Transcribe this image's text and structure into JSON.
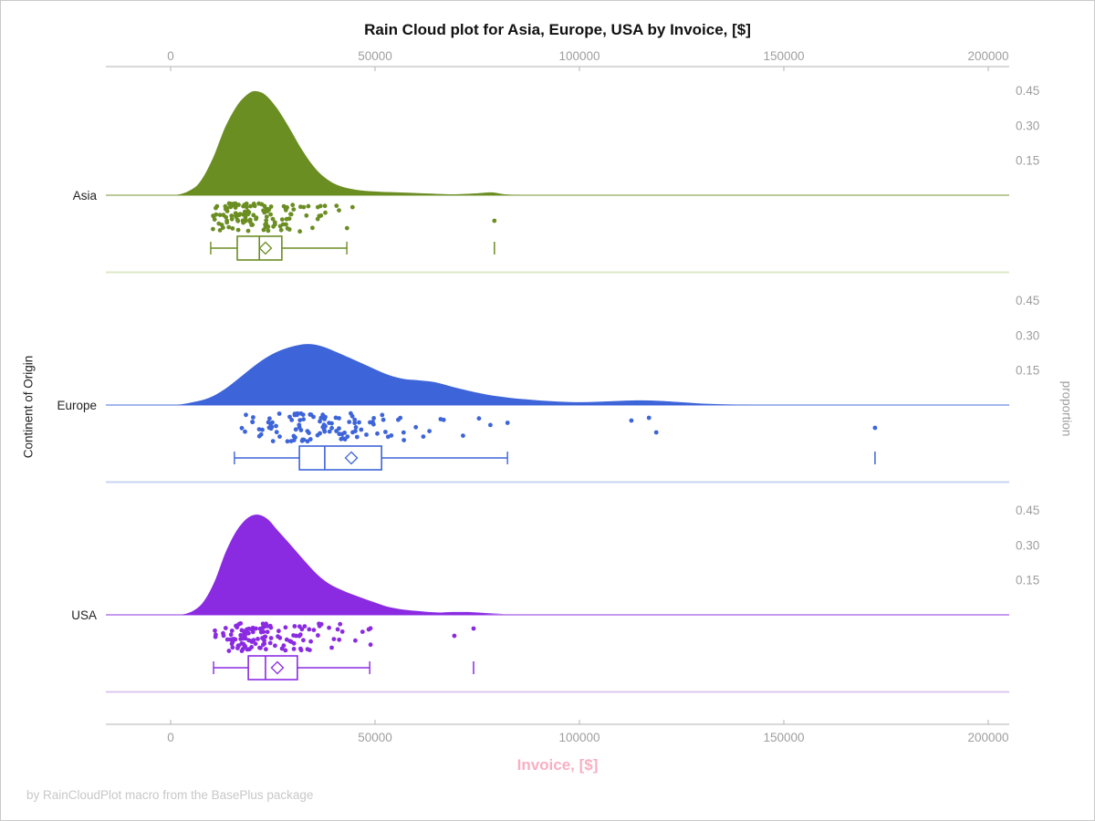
{
  "title": "Rain Cloud plot for Asia, Europe, USA by Invoice, [$]",
  "footer": "by RainCloudPlot macro from the BasePlus package",
  "axes": {
    "x_label": "Invoice, [$]",
    "y_left_label": "Continent of Origin",
    "y_right_label": "proportion",
    "x_tick_labels": [
      "0",
      "50000",
      "100000",
      "150000",
      "200000"
    ],
    "proportion_tick_labels": [
      "0.45",
      "0.30",
      "0.15"
    ]
  },
  "chart_data": {
    "type": "raincloud (half-violin density + jittered rain strip + box plot) per category",
    "title": "Rain Cloud plot for Asia, Europe, USA by Invoice, [$]",
    "xlabel": "Invoice, [$]",
    "ylabel_left": "Continent of Origin",
    "ylabel_right": "proportion",
    "x_ticks": [
      0,
      50000,
      100000,
      150000,
      200000
    ],
    "x_range": [
      -16000,
      205100
    ],
    "proportion_ticks": [
      0.45,
      0.3,
      0.15
    ],
    "categories": [
      "Asia",
      "Europe",
      "USA"
    ],
    "groups": [
      {
        "name": "Asia",
        "color": "#6B8E23",
        "separator_color": "#dce8c8",
        "density": [
          [
            1300,
            0
          ],
          [
            4200,
            0.016
          ],
          [
            7100,
            0.055
          ],
          [
            10300,
            0.157
          ],
          [
            13400,
            0.294
          ],
          [
            16500,
            0.391
          ],
          [
            19200,
            0.438
          ],
          [
            21000,
            0.446
          ],
          [
            23200,
            0.43
          ],
          [
            25900,
            0.376
          ],
          [
            29000,
            0.29
          ],
          [
            32100,
            0.196
          ],
          [
            35300,
            0.117
          ],
          [
            38400,
            0.067
          ],
          [
            41500,
            0.039
          ],
          [
            45500,
            0.023
          ],
          [
            50000,
            0.016
          ],
          [
            55600,
            0.012
          ],
          [
            62300,
            0.008
          ],
          [
            69000,
            0.004
          ],
          [
            74600,
            0.008
          ],
          [
            78600,
            0.012
          ],
          [
            81700,
            0.004
          ],
          [
            85700,
            0.001
          ],
          [
            94600,
            0
          ],
          [
            205100,
            0
          ]
        ],
        "box": {
          "min": 9800,
          "q1": 16300,
          "median": 21700,
          "q3": 27200,
          "max": 43100,
          "mean": 23200,
          "outliers": [
            79200
          ]
        },
        "rain": {
          "count": 130,
          "lognormal_mu": 9.976,
          "lognormal_sigma": 0.38,
          "clip": [
            9800,
            58000
          ],
          "seed": 11,
          "outlier_points": [
            [
              79200,
              28
            ]
          ]
        }
      },
      {
        "name": "Europe",
        "color": "#3D64D9",
        "separator_color": "#c7d4f1",
        "density": [
          [
            1600,
            0
          ],
          [
            5400,
            0.012
          ],
          [
            9400,
            0.031
          ],
          [
            13400,
            0.07
          ],
          [
            17400,
            0.125
          ],
          [
            21400,
            0.18
          ],
          [
            25400,
            0.223
          ],
          [
            29500,
            0.25
          ],
          [
            33300,
            0.262
          ],
          [
            36600,
            0.254
          ],
          [
            40600,
            0.227
          ],
          [
            44600,
            0.196
          ],
          [
            48700,
            0.164
          ],
          [
            52700,
            0.133
          ],
          [
            56700,
            0.113
          ],
          [
            60700,
            0.106
          ],
          [
            64700,
            0.098
          ],
          [
            69000,
            0.078
          ],
          [
            73400,
            0.059
          ],
          [
            77900,
            0.043
          ],
          [
            83000,
            0.031
          ],
          [
            87900,
            0.023
          ],
          [
            93500,
            0.016
          ],
          [
            99100,
            0.012
          ],
          [
            104700,
            0.014
          ],
          [
            110300,
            0.018
          ],
          [
            114700,
            0.02
          ],
          [
            119200,
            0.018
          ],
          [
            124800,
            0.012
          ],
          [
            130400,
            0.006
          ],
          [
            137100,
            0.002
          ],
          [
            146000,
            0
          ],
          [
            205100,
            0
          ]
        ],
        "box": {
          "min": 15600,
          "q1": 31500,
          "median": 37700,
          "q3": 51600,
          "max": 82400,
          "mean": 44200,
          "outliers": [
            172300
          ]
        },
        "rain": {
          "count": 115,
          "lognormal_mu": 10.55,
          "lognormal_sigma": 0.42,
          "clip": [
            15600,
            89000
          ],
          "seed": 23,
          "outlier_points": [
            [
              112700,
              17
            ],
            [
              117000,
              14
            ],
            [
              118800,
              30
            ],
            [
              172300,
              25
            ]
          ]
        }
      },
      {
        "name": "USA",
        "color": "#8A2BE2",
        "separator_color": "#dcc7ef",
        "density": [
          [
            2700,
            0
          ],
          [
            5400,
            0.016
          ],
          [
            8000,
            0.055
          ],
          [
            10700,
            0.141
          ],
          [
            13400,
            0.266
          ],
          [
            16100,
            0.36
          ],
          [
            18800,
            0.415
          ],
          [
            21200,
            0.43
          ],
          [
            23700,
            0.411
          ],
          [
            26300,
            0.36
          ],
          [
            29500,
            0.297
          ],
          [
            32600,
            0.235
          ],
          [
            35700,
            0.176
          ],
          [
            38800,
            0.133
          ],
          [
            42400,
            0.102
          ],
          [
            46000,
            0.078
          ],
          [
            49600,
            0.055
          ],
          [
            53100,
            0.035
          ],
          [
            56700,
            0.023
          ],
          [
            60700,
            0.016
          ],
          [
            65200,
            0.01
          ],
          [
            69000,
            0.012
          ],
          [
            72800,
            0.012
          ],
          [
            76800,
            0.008
          ],
          [
            81300,
            0.004
          ],
          [
            86800,
            0
          ],
          [
            205100,
            0
          ]
        ],
        "box": {
          "min": 10500,
          "q1": 19000,
          "median": 23200,
          "q3": 31000,
          "max": 48700,
          "mean": 26100,
          "outliers": [
            74100
          ]
        },
        "rain": {
          "count": 130,
          "lognormal_mu": 10.065,
          "lognormal_sigma": 0.36,
          "clip": [
            10500,
            49500
          ],
          "seed": 37,
          "outlier_points": [
            [
              69400,
              23
            ],
            [
              74100,
              15
            ]
          ]
        }
      }
    ],
    "layout_hints": {
      "grid": false,
      "legend": false,
      "x_axis_drawn_top_and_bottom": true
    }
  }
}
